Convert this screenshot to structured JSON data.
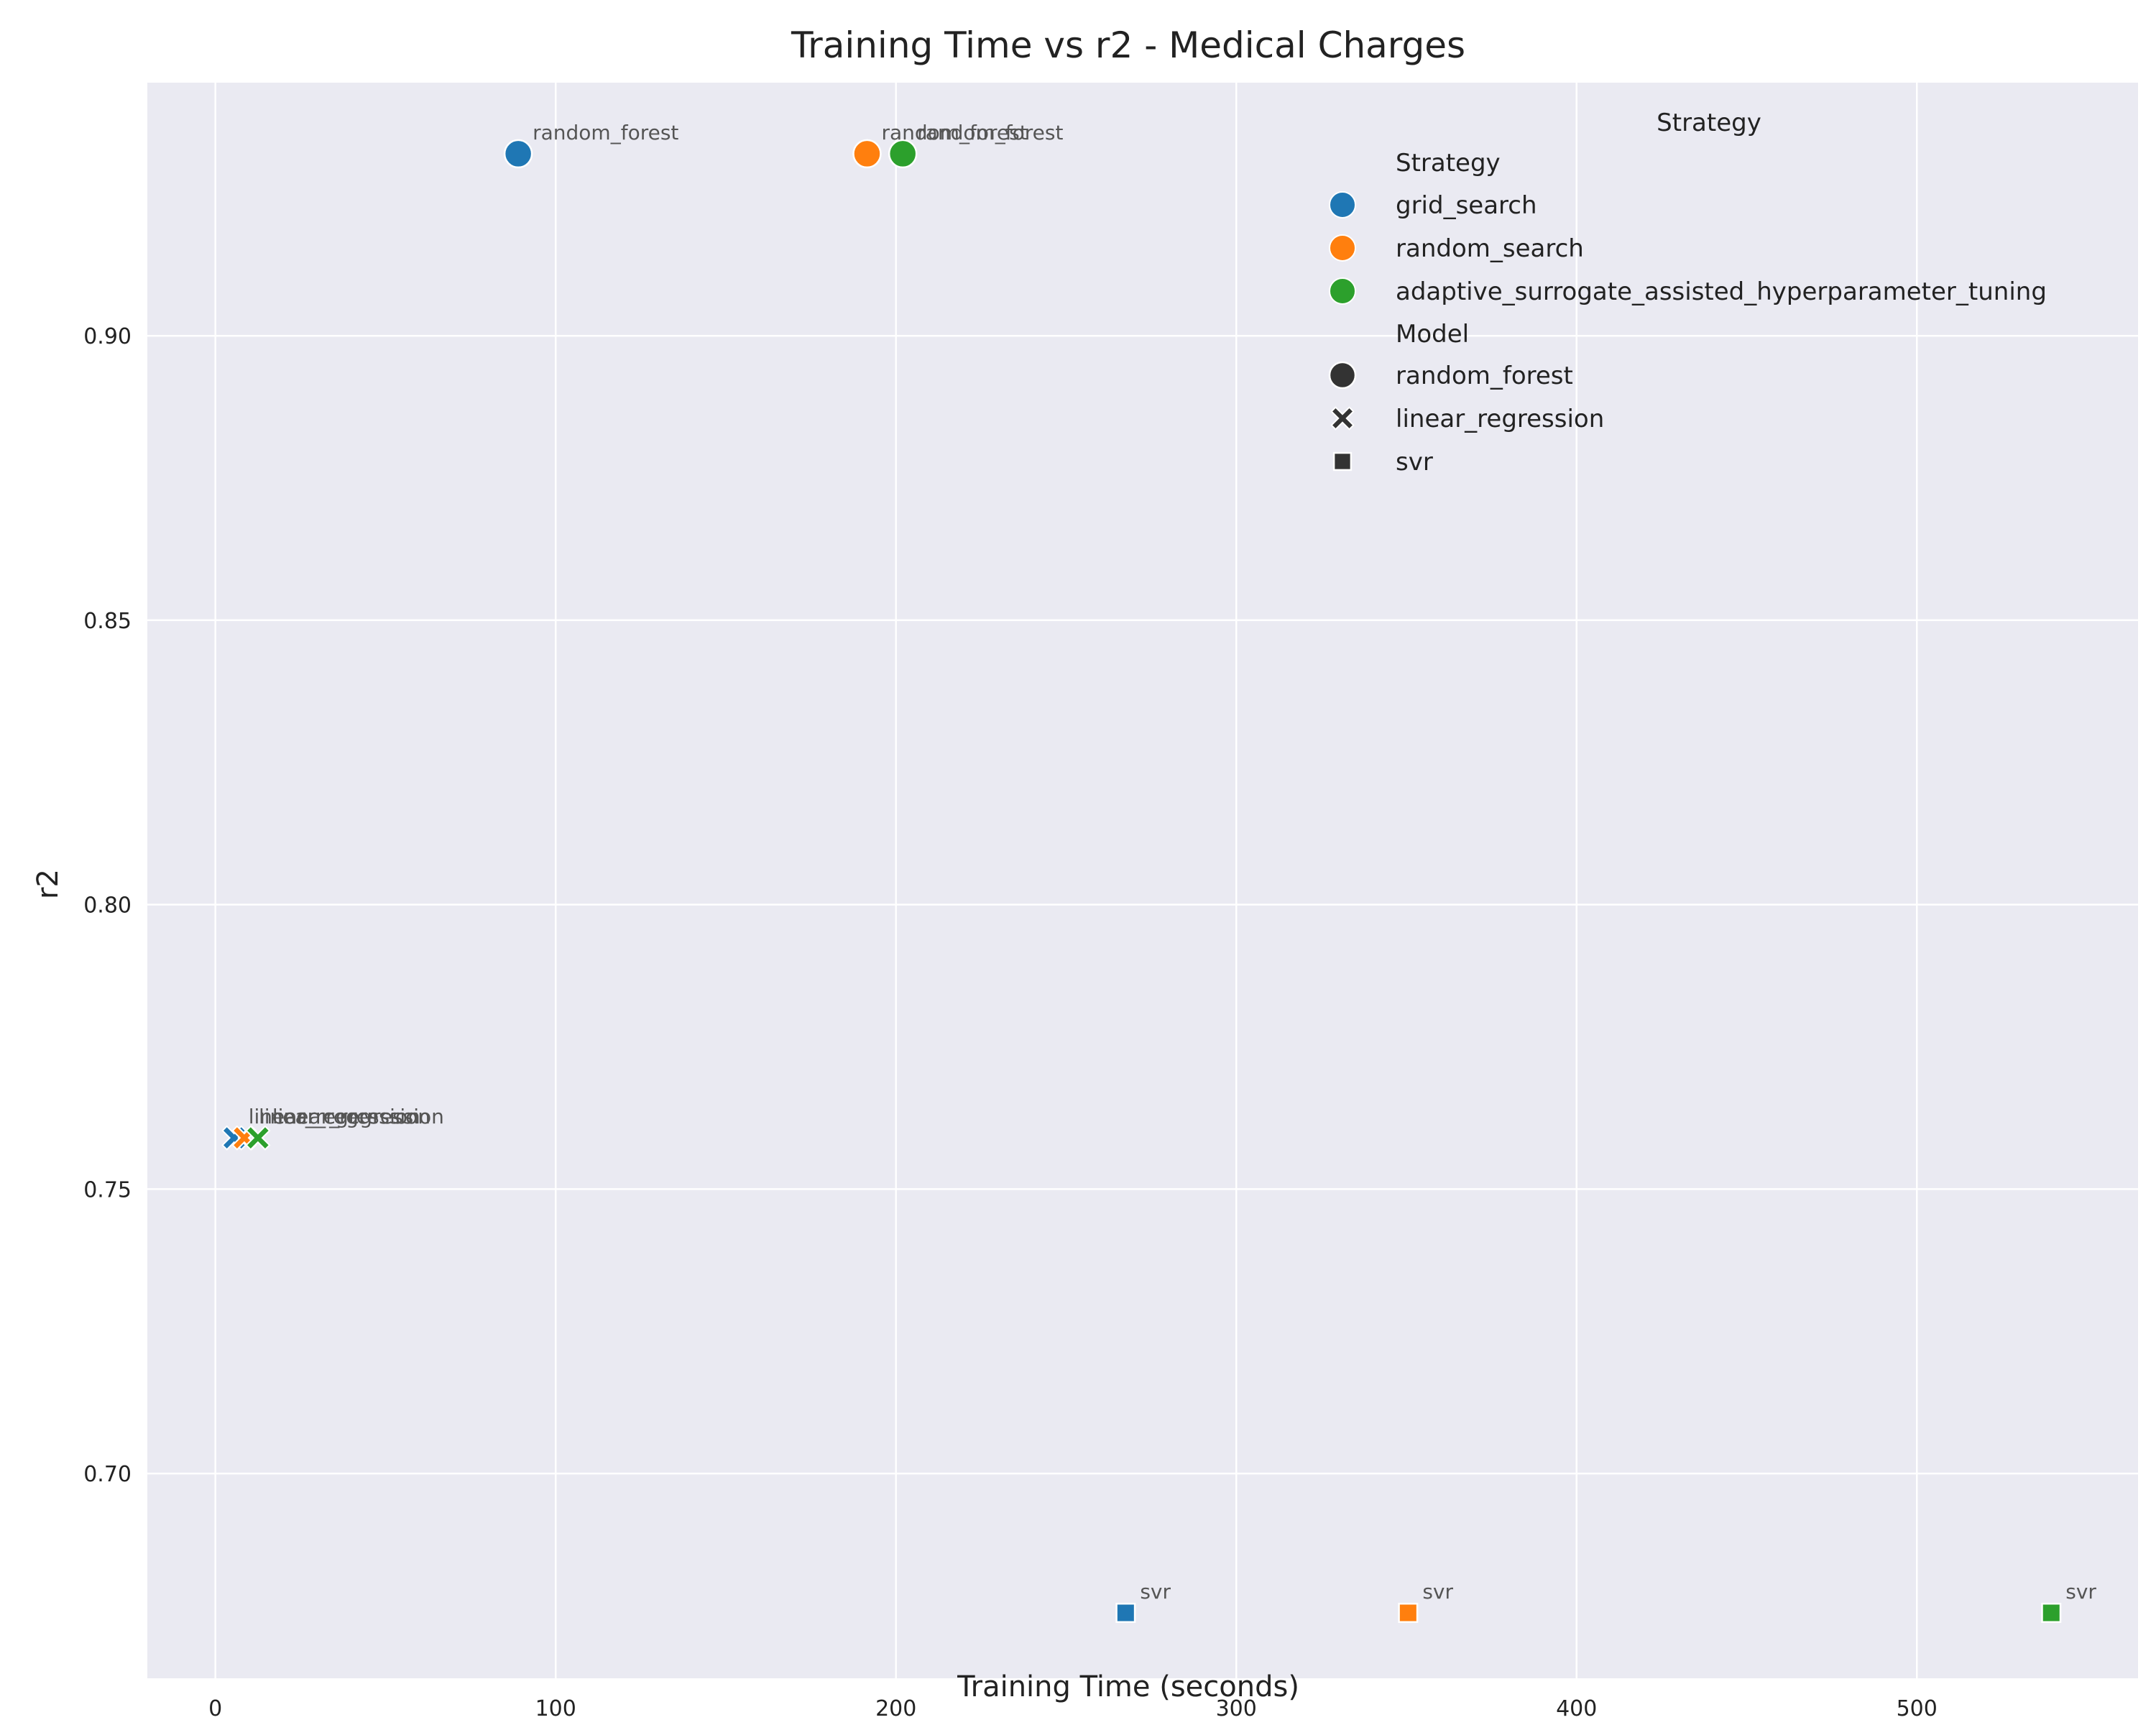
{
  "chart_data": {
    "type": "scatter",
    "title": "Training Time vs r2 - Medical Charges",
    "xlabel": "Training Time (seconds)",
    "ylabel": "r2",
    "xlim": [
      -20,
      565
    ],
    "ylim": [
      0.664,
      0.9445
    ],
    "xticks": [
      0,
      100,
      200,
      300,
      400,
      500
    ],
    "yticks": [
      0.7,
      0.75,
      0.8,
      0.85,
      0.9
    ],
    "ytick_labels": [
      "0.70",
      "0.75",
      "0.80",
      "0.85",
      "0.90"
    ],
    "grid": true,
    "legend_position": "top-right",
    "legend": {
      "outer_title": "Strategy",
      "hue_title": "Strategy",
      "style_title": "Model",
      "strategies": [
        {
          "name": "grid_search",
          "color": "#1f77b4"
        },
        {
          "name": "random_search",
          "color": "#ff7f0e"
        },
        {
          "name": "adaptive_surrogate_assisted_hyperparameter_tuning",
          "color": "#2ca02c"
        }
      ],
      "models": [
        {
          "name": "random_forest",
          "marker": "circle"
        },
        {
          "name": "linear_regression",
          "marker": "x"
        },
        {
          "name": "svr",
          "marker": "square"
        }
      ]
    },
    "points": [
      {
        "strategy": "grid_search",
        "model": "random_forest",
        "label": "random_forest",
        "x": 89,
        "y": 0.932
      },
      {
        "strategy": "random_search",
        "model": "random_forest",
        "label": "random_forest",
        "x": 191.5,
        "y": 0.932
      },
      {
        "strategy": "adaptive_surrogate_assisted_hyperparameter_tuning",
        "model": "random_forest",
        "label": "random_forest",
        "x": 202,
        "y": 0.932
      },
      {
        "strategy": "grid_search",
        "model": "linear_regression",
        "label": "linear_regression",
        "x": 5.5,
        "y": 0.759
      },
      {
        "strategy": "random_search",
        "model": "linear_regression",
        "label": "linear_regression",
        "x": 8.5,
        "y": 0.759
      },
      {
        "strategy": "adaptive_surrogate_assisted_hyperparameter_tuning",
        "model": "linear_regression",
        "label": "linear_regression",
        "x": 12.5,
        "y": 0.759
      },
      {
        "strategy": "grid_search",
        "model": "svr",
        "label": "svr",
        "x": 267.5,
        "y": 0.6755
      },
      {
        "strategy": "random_search",
        "model": "svr",
        "label": "svr",
        "x": 350.5,
        "y": 0.6755
      },
      {
        "strategy": "adaptive_surrogate_assisted_hyperparameter_tuning",
        "model": "svr",
        "label": "svr",
        "x": 539.5,
        "y": 0.6755
      }
    ]
  }
}
